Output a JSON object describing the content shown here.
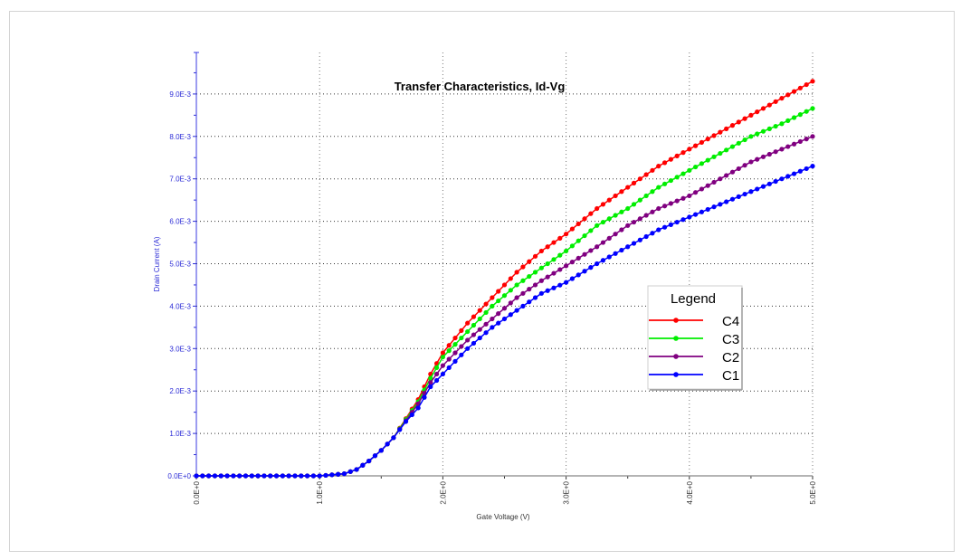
{
  "chart_data": {
    "type": "line",
    "title": "Transfer Characteristics, Id-Vg",
    "xlabel": "Gate Voltage (V)",
    "ylabel": "Drain Current (A)",
    "xlim": [
      0,
      5
    ],
    "ylim": [
      0,
      0.0093
    ],
    "x_ticks": [
      "0.0E+0",
      "1.0E+0",
      "2.0E+0",
      "3.0E+0",
      "4.0E+0",
      "5.0E+0"
    ],
    "y_ticks": [
      "0.0E+0",
      "1.0E-3",
      "2.0E-3",
      "3.0E-3",
      "4.0E-3",
      "5.0E-3",
      "6.0E-3",
      "7.0E-3",
      "8.0E-3",
      "9.0E-3"
    ],
    "grid": true,
    "legend": {
      "title": "Legend",
      "position": "right-center"
    },
    "x": [
      0.0,
      0.5,
      1.0,
      1.2,
      1.3,
      1.4,
      1.5,
      1.6,
      1.7,
      1.8,
      1.9,
      2.0,
      2.2,
      2.4,
      2.6,
      2.8,
      3.0,
      3.25,
      3.5,
      3.75,
      4.0,
      4.25,
      4.5,
      4.75,
      5.0
    ],
    "series": [
      {
        "name": "C4",
        "color": "#ff0000",
        "values": [
          0,
          0,
          0,
          5e-05,
          0.00015,
          0.00035,
          0.0006,
          0.0009,
          0.00135,
          0.0018,
          0.0024,
          0.0029,
          0.0036,
          0.0042,
          0.0048,
          0.0053,
          0.0057,
          0.0063,
          0.0068,
          0.0073,
          0.0077,
          0.0081,
          0.0085,
          0.0089,
          0.0093
        ]
      },
      {
        "name": "C3",
        "color": "#00ee00",
        "values": [
          0,
          0,
          0,
          5e-05,
          0.00015,
          0.00035,
          0.0006,
          0.0009,
          0.00133,
          0.00175,
          0.0023,
          0.0028,
          0.0034,
          0.004,
          0.0045,
          0.0049,
          0.0053,
          0.0059,
          0.0063,
          0.0068,
          0.0072,
          0.0076,
          0.008,
          0.0083,
          0.00866
        ]
      },
      {
        "name": "C2",
        "color": "#800080",
        "values": [
          0,
          0,
          0,
          5e-05,
          0.00015,
          0.00035,
          0.0006,
          0.0009,
          0.0013,
          0.0017,
          0.0022,
          0.0026,
          0.0032,
          0.0037,
          0.0042,
          0.0046,
          0.00495,
          0.0054,
          0.0059,
          0.0063,
          0.0066,
          0.007,
          0.0074,
          0.0077,
          0.008
        ]
      },
      {
        "name": "C1",
        "color": "#0000ff",
        "values": [
          0,
          0,
          0,
          5e-05,
          0.00015,
          0.00035,
          0.0006,
          0.0009,
          0.00128,
          0.0016,
          0.0021,
          0.0024,
          0.003,
          0.0035,
          0.0039,
          0.0043,
          0.00456,
          0.005,
          0.0054,
          0.0058,
          0.0061,
          0.0064,
          0.0067,
          0.007,
          0.0073
        ]
      }
    ]
  },
  "legend_title": "Legend",
  "chart_title": "Transfer Characteristics, Id-Vg",
  "x_axis_label": "Gate Voltage (V)",
  "y_axis_label": "Drain Current (A)"
}
